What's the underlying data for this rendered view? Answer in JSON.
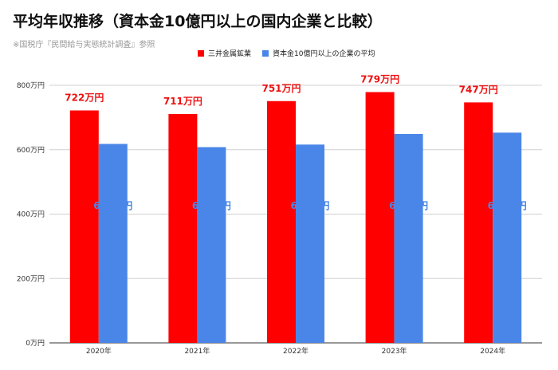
{
  "chart_data": {
    "type": "bar",
    "title": "平均年収推移（資本金10億円以上の国内企業と比較）",
    "subtitle": "※国税庁『民間給与実態統計調査』参照",
    "categories": [
      "2020年",
      "2021年",
      "2022年",
      "2023年",
      "2024年"
    ],
    "series": [
      {
        "name": "三井金属鉱業",
        "color": "#ff0000",
        "values": [
          722,
          711,
          751,
          779,
          747
        ],
        "labels": [
          "722万円",
          "711万円",
          "751万円",
          "779万円",
          "747万円"
        ]
      },
      {
        "name": "資本金10億円以上の企業の平均",
        "color": "#4a86e8",
        "values": [
          618,
          608,
          616,
          649,
          653
        ],
        "labels": [
          "618万円",
          "608万円",
          "616万円",
          "649万円",
          "653万円"
        ]
      }
    ],
    "ylim": [
      0,
      800
    ],
    "yticks": [
      0,
      200,
      400,
      600,
      800
    ],
    "ytick_labels": [
      "0万円",
      "200万円",
      "400万円",
      "600万円",
      "800万円"
    ],
    "grid": true,
    "legend_position": "top"
  }
}
